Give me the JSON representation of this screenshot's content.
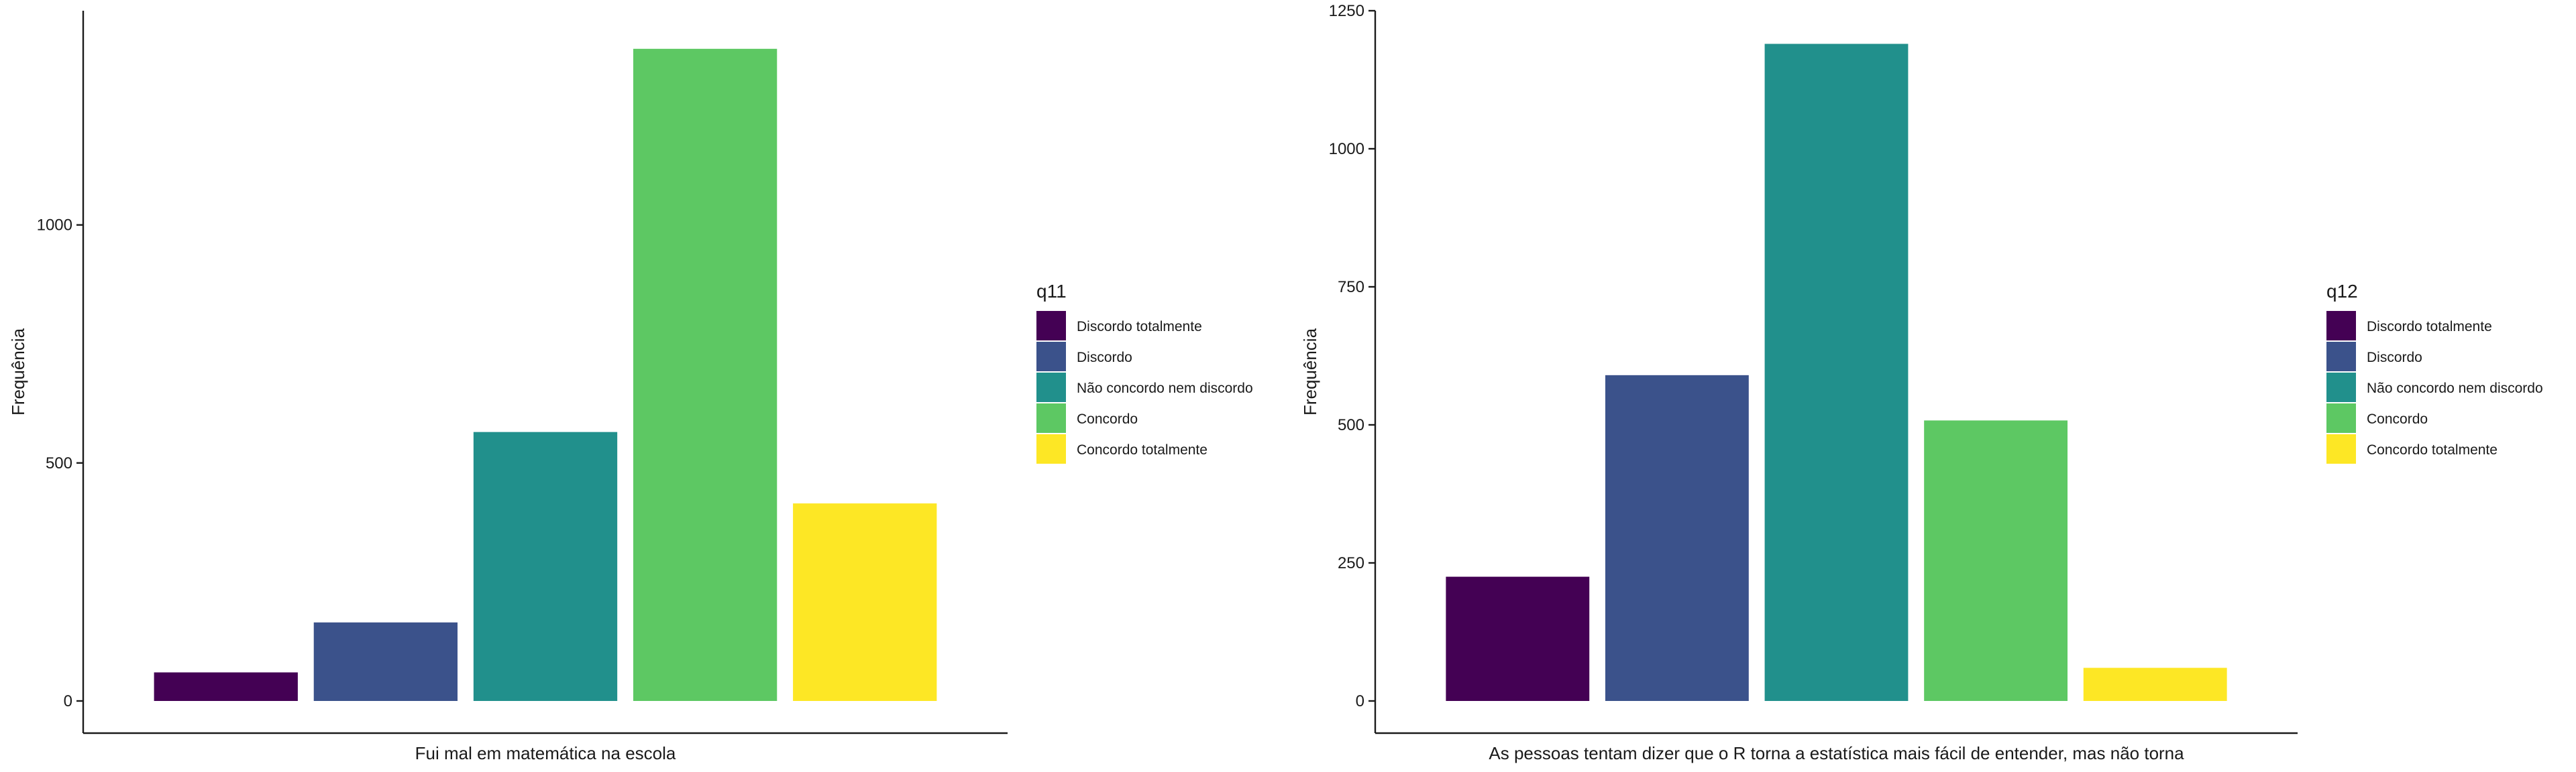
{
  "chart_data": [
    {
      "type": "bar",
      "title": "",
      "xlabel": "Fui mal em matemática na escola",
      "ylabel": "Frequência",
      "ylim": [
        0,
        1450
      ],
      "yticks": [
        0,
        500,
        1000
      ],
      "grid": false,
      "categories": [
        "Discordo totalmente",
        "Discordo",
        "Não concordo nem discordo",
        "Concordo",
        "Concordo totalmente"
      ],
      "values": [
        60,
        165,
        565,
        1370,
        415
      ],
      "colors": [
        "#440154",
        "#3B528B",
        "#21908C",
        "#5DC863",
        "#FDE725"
      ],
      "legend": {
        "title": "q11",
        "position": "right",
        "entries": [
          "Discordo totalmente",
          "Discordo",
          "Não concordo nem discordo",
          "Concordo",
          "Concordo totalmente"
        ]
      }
    },
    {
      "type": "bar",
      "title": "",
      "xlabel": "As pessoas tentam dizer que o R torna a estatística mais fácil de entender, mas não torna",
      "ylabel": "Frequência",
      "ylim": [
        0,
        1250
      ],
      "yticks": [
        0,
        250,
        500,
        750,
        1000,
        1250
      ],
      "grid": false,
      "categories": [
        "Discordo totalmente",
        "Discordo",
        "Não concordo nem discordo",
        "Concordo",
        "Concordo totalmente"
      ],
      "values": [
        225,
        590,
        1190,
        508,
        60
      ],
      "colors": [
        "#440154",
        "#3B528B",
        "#21908C",
        "#5DC863",
        "#FDE725"
      ],
      "legend": {
        "title": "q12",
        "position": "right",
        "entries": [
          "Discordo totalmente",
          "Discordo",
          "Não concordo nem discordo",
          "Concordo",
          "Concordo totalmente"
        ]
      }
    }
  ]
}
